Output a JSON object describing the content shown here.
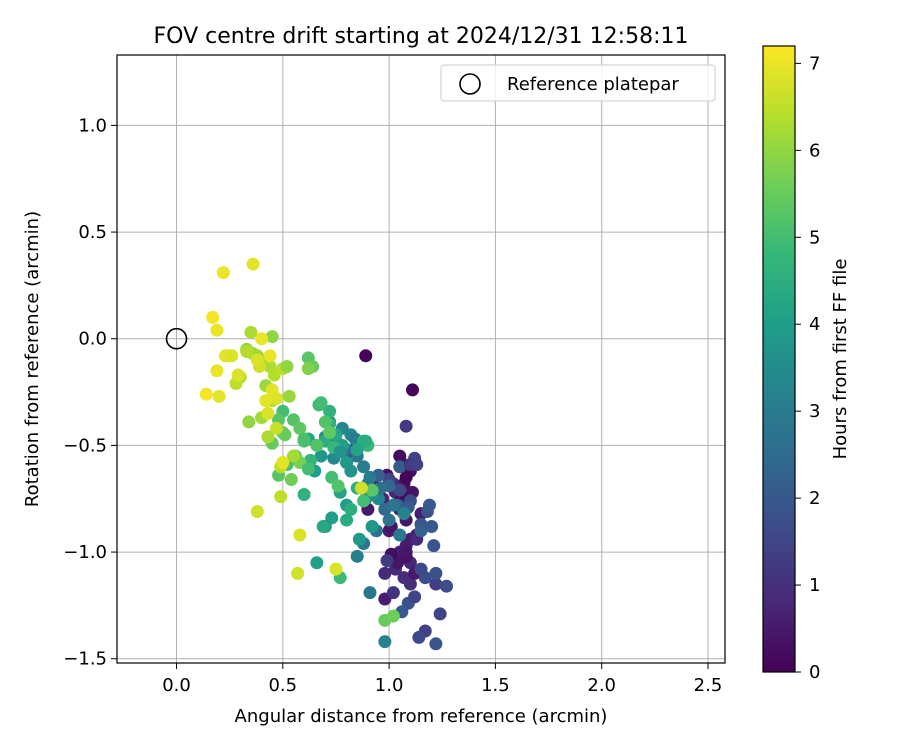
{
  "chart_data": {
    "type": "scatter",
    "title": "FOV centre drift starting at 2024/12/31 12:58:11",
    "xlabel": "Angular distance from reference (arcmin)",
    "ylabel": "Rotation from reference (arcmin)",
    "xlim": [
      -0.28,
      2.58
    ],
    "ylim": [
      -1.52,
      1.33
    ],
    "xticks": [
      0.0,
      0.5,
      1.0,
      1.5,
      2.0,
      2.5
    ],
    "xtick_labels": [
      "0.0",
      "0.5",
      "1.0",
      "1.5",
      "2.0",
      "2.5"
    ],
    "yticks": [
      1.0,
      0.5,
      0.0,
      -0.5,
      -1.0,
      -1.5
    ],
    "ytick_labels": [
      "1.0",
      "0.5",
      "0.0",
      "−0.5",
      "−1.0",
      "−1.5"
    ],
    "grid": true,
    "legend": {
      "position": "top-right",
      "entries": [
        "Reference platepar"
      ]
    },
    "reference_point": {
      "x": 0.0,
      "y": 0.0,
      "label": "Reference platepar"
    },
    "colorbar": {
      "label": "Hours from first FF file",
      "min": 0,
      "max": 7.2,
      "ticks": [
        0,
        1,
        2,
        3,
        4,
        5,
        6,
        7
      ],
      "tick_labels": [
        "0",
        "1",
        "2",
        "3",
        "4",
        "5",
        "6",
        "7"
      ],
      "colormap": "viridis",
      "colormap_stops": [
        "#440154",
        "#482878",
        "#3e4989",
        "#31688e",
        "#26828e",
        "#1f9e89",
        "#35b779",
        "#6ece58",
        "#b5de2b",
        "#fde725"
      ]
    },
    "series": [
      {
        "x": [
          0.89,
          1.11,
          1.05,
          1.1,
          1.07,
          1.11,
          1.05,
          1.08,
          1.0,
          1.13,
          1.08,
          1.05,
          1.05,
          1.1,
          1.03,
          0.98,
          1.07,
          1.1,
          1.08,
          1.04,
          0.98,
          0.9,
          0.95,
          0.82,
          0.85,
          0.92,
          0.97,
          1.03,
          1.02,
          0.99,
          1.01,
          1.08,
          1.12,
          1.1,
          1.07,
          1.01,
          1.03,
          1.06,
          1.08,
          1.15,
          1.13
        ],
        "y": [
          -0.08,
          -0.24,
          -0.55,
          -0.62,
          -0.68,
          -0.72,
          -0.8,
          -0.85,
          -0.9,
          -0.92,
          -0.97,
          -1.0,
          -1.03,
          -1.05,
          -1.08,
          -1.1,
          -1.12,
          -1.15,
          -1.02,
          -1.05,
          -1.22,
          -0.8,
          -0.7,
          -0.55,
          -0.5,
          -0.66,
          -0.75,
          -0.72,
          -0.68,
          -0.64,
          -0.88,
          -1.0,
          -1.1,
          -0.94,
          -0.59,
          -1.01,
          -0.78,
          -0.74,
          -0.65,
          -0.82,
          -0.94
        ],
        "t": [
          0.05,
          0.1,
          0.2,
          0.25,
          0.3,
          0.35,
          0.4,
          0.45,
          0.5,
          0.55,
          0.6,
          0.65,
          0.7,
          0.75,
          0.8,
          0.85,
          0.9,
          0.95,
          0.3,
          0.4,
          0.6,
          0.5,
          0.45,
          0.55,
          0.6,
          0.65,
          0.7,
          0.75,
          0.8,
          0.35,
          0.4,
          0.45,
          0.5,
          0.55,
          0.2,
          0.25,
          0.3,
          0.15,
          0.1,
          0.6,
          0.8
        ]
      },
      {
        "x": [
          1.08,
          1.12,
          1.0,
          1.05,
          1.1,
          1.18,
          1.15,
          1.2,
          1.22,
          1.24,
          1.27,
          1.22,
          1.17,
          1.14,
          1.09,
          1.06,
          1.02,
          0.99,
          1.12,
          1.17,
          1.21,
          1.05,
          1.1,
          1.13,
          1.15,
          0.95,
          1.0,
          1.04,
          1.09,
          1.15,
          1.19,
          1.22
        ],
        "y": [
          -0.41,
          -0.56,
          -0.66,
          -0.71,
          -0.76,
          -0.81,
          -0.87,
          -0.88,
          -1.15,
          -1.29,
          -1.16,
          -1.43,
          -1.37,
          -1.4,
          -1.24,
          -1.28,
          -1.19,
          -1.04,
          -1.21,
          -1.12,
          -0.97,
          -0.6,
          -0.59,
          -0.59,
          -1.08,
          -0.64,
          -0.69,
          -0.78,
          -0.79,
          -0.9,
          -0.78,
          -1.1
        ],
        "t": [
          1.2,
          1.4,
          1.5,
          1.6,
          1.7,
          1.8,
          1.9,
          2.0,
          1.3,
          1.5,
          1.7,
          1.9,
          1.4,
          1.6,
          1.8,
          2.0,
          1.1,
          1.3,
          1.5,
          1.7,
          1.9,
          2.1,
          1.2,
          1.4,
          1.6,
          2.2,
          2.4,
          2.3,
          2.1,
          2.2,
          2.0,
          1.8
        ]
      },
      {
        "x": [
          0.75,
          0.8,
          0.85,
          0.88,
          0.9,
          0.92,
          0.95,
          0.98,
          1.0,
          1.05,
          0.82,
          0.86,
          0.91,
          0.96,
          1.02,
          1.07,
          0.89,
          0.94,
          0.88,
          0.85,
          0.78,
          0.72,
          0.7,
          0.74,
          0.8,
          0.84,
          0.98,
          0.91
        ],
        "y": [
          -0.48,
          -0.52,
          -0.55,
          -0.6,
          -0.68,
          -0.72,
          -0.75,
          -0.8,
          -0.85,
          -0.92,
          -0.45,
          -0.5,
          -0.65,
          -0.7,
          -0.78,
          -0.82,
          -0.75,
          -0.9,
          -0.96,
          -1.02,
          -0.42,
          -0.39,
          -0.46,
          -0.56,
          -0.58,
          -0.47,
          -1.42,
          -1.19
        ],
        "t": [
          2.6,
          2.8,
          2.9,
          3.0,
          3.1,
          3.2,
          3.3,
          2.5,
          2.7,
          2.9,
          3.4,
          3.5,
          3.0,
          2.6,
          2.8,
          3.2,
          2.5,
          2.7,
          2.9,
          3.1,
          3.3,
          3.5,
          3.6,
          3.4,
          3.2,
          3.0,
          3.2,
          2.8
        ]
      },
      {
        "x": [
          0.62,
          0.65,
          0.68,
          0.7,
          0.72,
          0.75,
          0.78,
          0.8,
          0.82,
          0.85,
          0.88,
          0.9,
          0.92,
          0.7,
          0.73,
          0.77,
          0.8,
          0.86,
          0.66,
          0.69,
          0.72,
          0.74,
          0.77,
          0.8,
          0.82,
          0.63,
          0.67,
          0.85,
          0.89,
          0.92,
          0.6
        ],
        "y": [
          -0.47,
          -0.62,
          -0.55,
          -0.48,
          -0.4,
          -0.45,
          -0.5,
          -0.58,
          -0.62,
          -0.7,
          -0.48,
          -0.5,
          -0.73,
          -0.88,
          -0.84,
          -0.72,
          -0.85,
          -0.94,
          -1.05,
          -0.88,
          -0.34,
          -0.51,
          -0.53,
          -0.78,
          -0.8,
          -0.57,
          -0.31,
          -0.52,
          -0.48,
          -0.88,
          -0.73
        ],
        "t": [
          4.2,
          4.0,
          3.8,
          4.4,
          4.6,
          4.3,
          4.1,
          3.9,
          3.7,
          4.5,
          4.7,
          4.8,
          3.6,
          3.8,
          4.0,
          4.2,
          4.4,
          3.9,
          4.1,
          4.3,
          4.6,
          4.8,
          3.7,
          4.0,
          4.5,
          4.7,
          4.9,
          4.2,
          4.4,
          3.8,
          4.6
        ]
      },
      {
        "x": [
          0.5,
          0.55,
          0.58,
          0.6,
          0.62,
          0.64,
          0.68,
          0.7,
          0.72,
          0.56,
          0.52,
          0.48,
          0.45,
          0.58,
          0.62,
          0.66,
          0.5,
          0.54,
          0.62,
          0.6,
          0.48,
          0.51,
          0.73,
          0.76,
          0.77,
          0.98,
          1.02,
          0.88,
          0.92
        ],
        "y": [
          -0.34,
          -0.38,
          -0.42,
          -0.47,
          -0.09,
          -0.13,
          -0.3,
          -0.39,
          -0.44,
          -0.55,
          -0.59,
          -0.64,
          -0.49,
          -0.58,
          -0.61,
          -0.5,
          -0.44,
          -0.66,
          -0.14,
          -0.48,
          -0.38,
          -0.45,
          -0.65,
          -0.69,
          -1.12,
          -1.32,
          -1.3,
          -0.76,
          -0.71
        ],
        "t": [
          5.0,
          5.2,
          5.4,
          5.1,
          5.3,
          5.5,
          5.0,
          5.2,
          5.4,
          5.6,
          5.1,
          5.3,
          5.5,
          5.7,
          5.0,
          5.2,
          5.4,
          5.6,
          5.8,
          5.1,
          5.3,
          5.5,
          5.0,
          5.2,
          4.9,
          5.5,
          5.6,
          5.0,
          5.3
        ]
      },
      {
        "x": [
          0.33,
          0.36,
          0.4,
          0.44,
          0.46,
          0.5,
          0.52,
          0.42,
          0.38,
          0.35,
          0.3,
          0.28,
          0.25,
          0.34,
          0.4,
          0.45,
          0.47,
          0.53,
          0.43,
          0.49,
          0.45,
          0.55,
          0.33,
          0.49
        ],
        "y": [
          -0.05,
          -0.07,
          -0.1,
          -0.13,
          -0.17,
          -0.14,
          -0.13,
          -0.22,
          -0.08,
          0.03,
          -0.18,
          -0.21,
          -0.08,
          -0.39,
          -0.37,
          -0.29,
          -0.42,
          -0.27,
          -0.46,
          -0.74,
          0.01,
          -0.55,
          -0.06,
          -0.6
        ],
        "t": [
          6.0,
          6.1,
          6.2,
          6.3,
          6.4,
          6.5,
          6.0,
          6.1,
          6.2,
          6.3,
          6.4,
          6.5,
          6.6,
          6.0,
          6.2,
          6.4,
          6.6,
          6.1,
          6.3,
          6.5,
          6.0,
          6.2,
          6.4,
          6.5
        ]
      },
      {
        "x": [
          0.22,
          0.36,
          0.17,
          0.19,
          0.23,
          0.26,
          0.19,
          0.14,
          0.2,
          0.29,
          0.39,
          0.44,
          0.45,
          0.47,
          0.4,
          0.42,
          0.43,
          0.38,
          0.5,
          0.58,
          0.57,
          0.75,
          0.87,
          0.38
        ],
        "y": [
          0.31,
          0.35,
          0.1,
          0.04,
          -0.08,
          -0.08,
          -0.15,
          -0.26,
          -0.27,
          -0.17,
          -0.13,
          -0.08,
          -0.24,
          -0.28,
          0.0,
          -0.29,
          -0.35,
          -0.81,
          -0.58,
          -0.92,
          -1.1,
          -1.08,
          -0.7,
          -0.1
        ],
        "t": [
          7.0,
          6.9,
          7.1,
          7.0,
          6.9,
          6.8,
          7.0,
          7.1,
          6.9,
          6.8,
          6.7,
          7.0,
          6.9,
          6.8,
          7.0,
          6.9,
          6.8,
          6.7,
          6.9,
          6.8,
          6.7,
          6.8,
          6.7,
          6.8
        ]
      }
    ]
  }
}
